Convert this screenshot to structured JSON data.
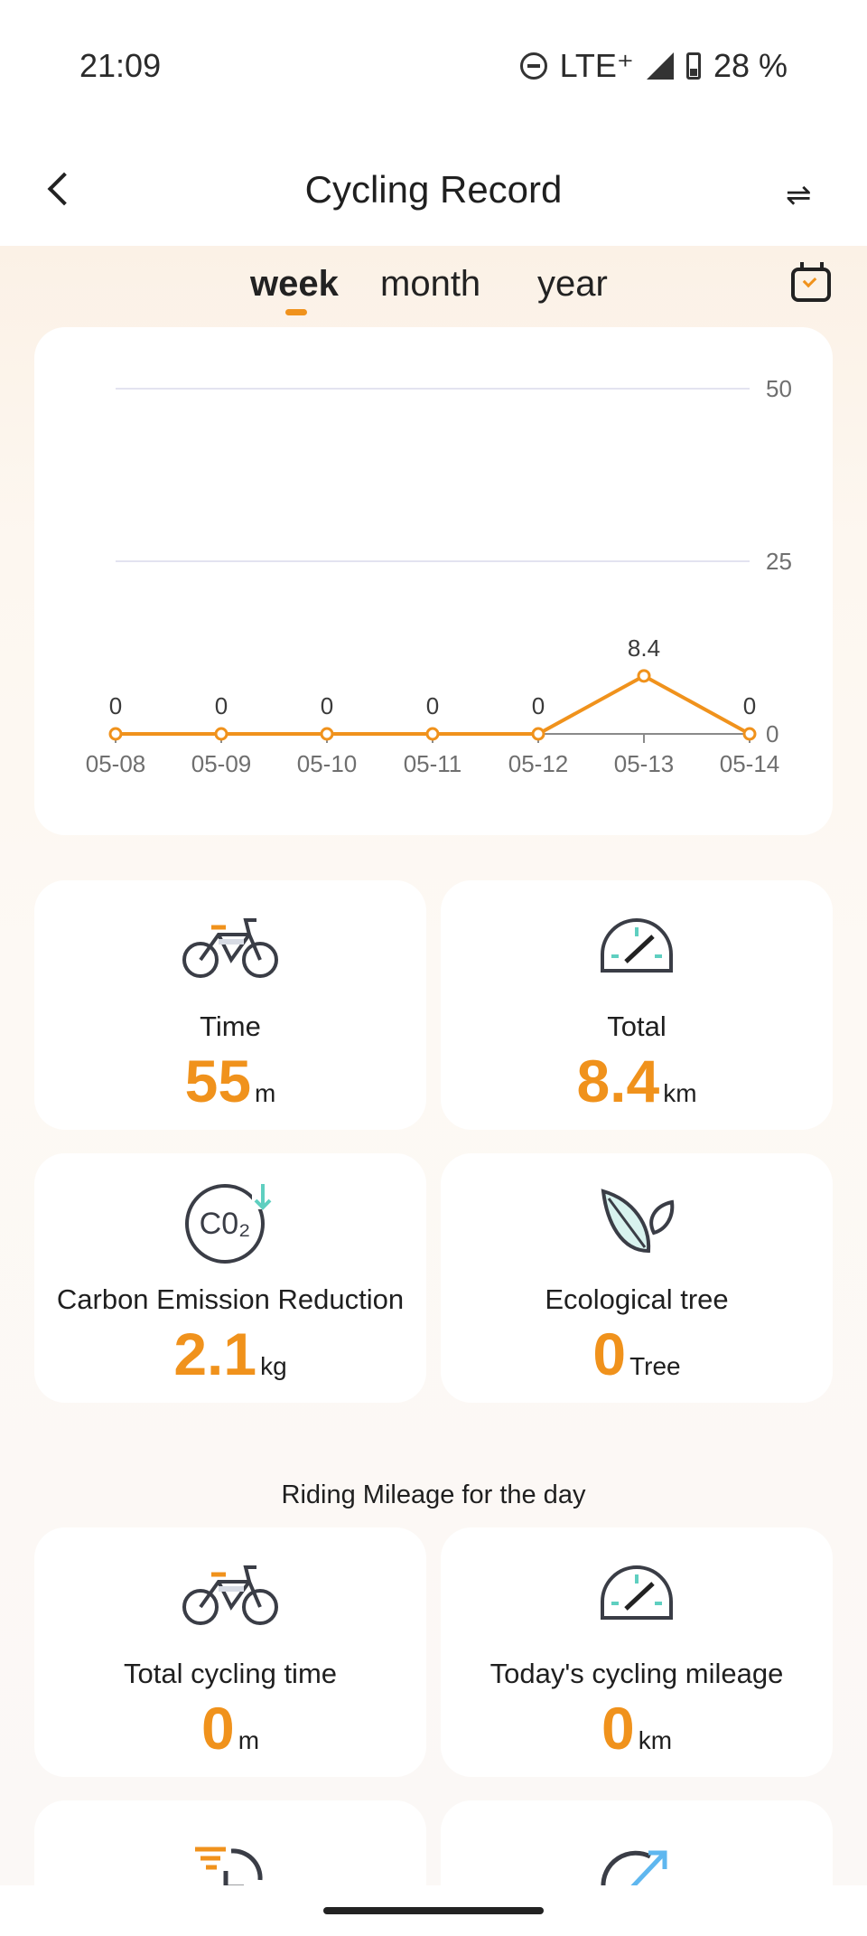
{
  "status_bar": {
    "time": "21:09",
    "network": "LTE⁺",
    "battery": "28 %"
  },
  "header": {
    "title": "Cycling Record"
  },
  "tabs": [
    {
      "label": "week",
      "active": true
    },
    {
      "label": "month"
    },
    {
      "label": "year"
    }
  ],
  "colors": {
    "accent": "#f0921c",
    "teal": "#5fcfc0",
    "grid": "#e3e3f0"
  },
  "chart_data": {
    "type": "line",
    "categories": [
      "05-08",
      "05-09",
      "05-10",
      "05-11",
      "05-12",
      "05-13",
      "05-14"
    ],
    "values": [
      0,
      0,
      0,
      0,
      0,
      8.4,
      0
    ],
    "data_labels": [
      "0",
      "0",
      "0",
      "0",
      "0",
      "8.4",
      "0"
    ],
    "yticks": [
      "50",
      "25",
      "0"
    ],
    "ylim": [
      0,
      50
    ],
    "grid": true
  },
  "stats": [
    {
      "icon": "bicycle-icon",
      "label": "Time",
      "value": "55",
      "unit": "m"
    },
    {
      "icon": "speedometer-icon",
      "label": "Total",
      "value": "8.4",
      "unit": "km"
    },
    {
      "icon": "co2-icon",
      "label": "Carbon Emission Reduction",
      "value": "2.1",
      "unit": "kg"
    },
    {
      "icon": "leaf-icon",
      "label": "Ecological tree",
      "value": "0",
      "unit": "Tree"
    }
  ],
  "daily": {
    "title": "Riding Mileage for the day",
    "items": [
      {
        "icon": "bicycle-icon",
        "label": "Total cycling time",
        "value": "0",
        "unit": "m"
      },
      {
        "icon": "speedometer-icon",
        "label": "Today's cycling mileage",
        "value": "0",
        "unit": "km"
      }
    ]
  }
}
